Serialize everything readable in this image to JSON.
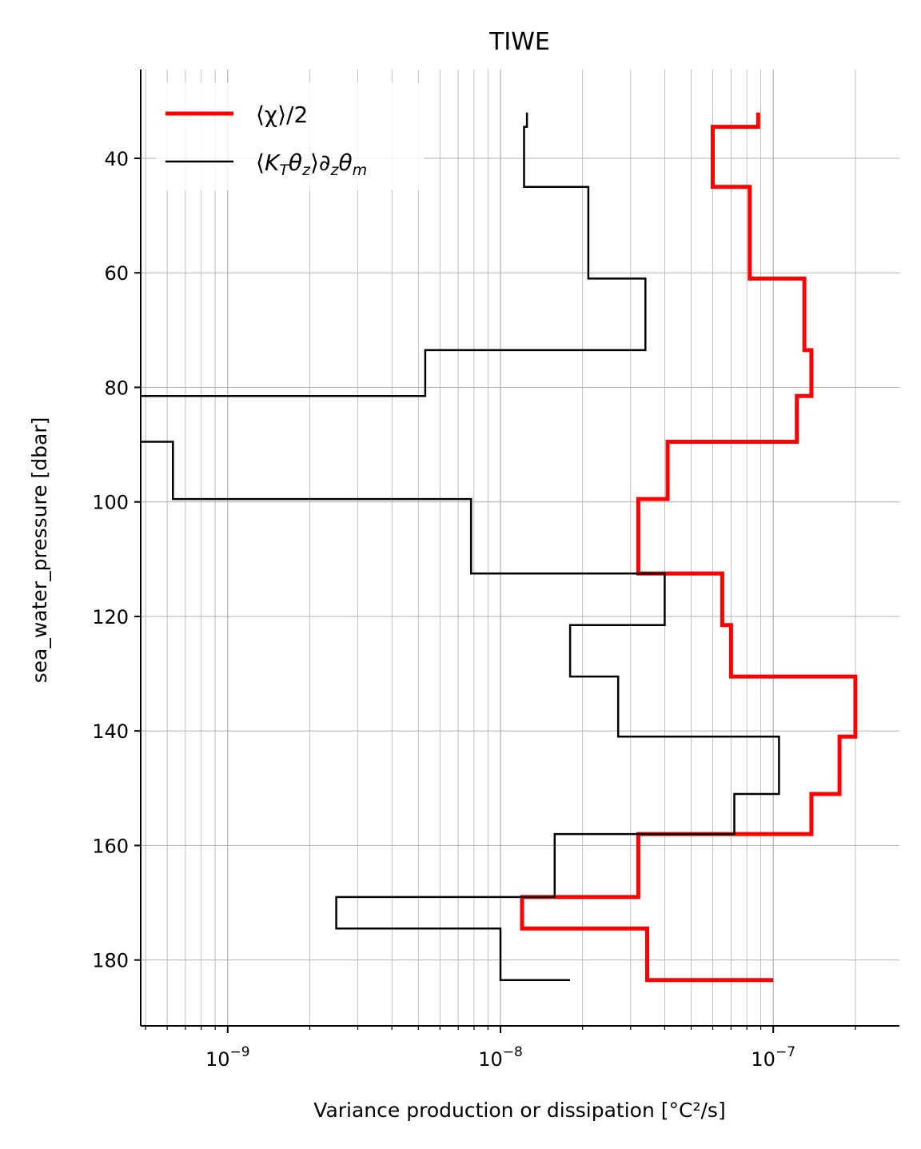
{
  "chart_data": {
    "type": "line",
    "title": "TIWE",
    "xlabel": "Variance production or dissipation [°C²/s]",
    "ylabel": "sea_water_pressure [dbar]",
    "x_scale": "log",
    "xlim": [
      4.8e-10,
      2.9e-07
    ],
    "ylim": [
      191.5,
      24.5
    ],
    "y_inverted": true,
    "x_ticks": [
      {
        "value": 1e-09,
        "label": "10",
        "exp": "−9"
      },
      {
        "value": 1e-08,
        "label": "10",
        "exp": "−8"
      },
      {
        "value": 1e-07,
        "label": "10",
        "exp": "−7"
      }
    ],
    "y_ticks": [
      40,
      60,
      80,
      100,
      120,
      140,
      160,
      180
    ],
    "grid": "major and minor",
    "legend_position": "top-left",
    "series": [
      {
        "name": "⟨χ⟩/2",
        "color": "#ff0000",
        "style": "step",
        "points": [
          [
            8.8e-08,
            32
          ],
          [
            8.8e-08,
            34.5
          ],
          [
            6e-08,
            34.5
          ],
          [
            6e-08,
            45
          ],
          [
            8.2e-08,
            45
          ],
          [
            8.2e-08,
            61
          ],
          [
            1.3e-07,
            61
          ],
          [
            1.3e-07,
            73.5
          ],
          [
            1.38e-07,
            73.5
          ],
          [
            1.38e-07,
            81.5
          ],
          [
            1.22e-07,
            81.5
          ],
          [
            1.22e-07,
            89.5
          ],
          [
            4.1e-08,
            89.5
          ],
          [
            4.1e-08,
            99.5
          ],
          [
            3.2e-08,
            99.5
          ],
          [
            3.2e-08,
            112.5
          ],
          [
            6.5e-08,
            112.5
          ],
          [
            6.5e-08,
            121.5
          ],
          [
            7e-08,
            121.5
          ],
          [
            7e-08,
            130.5
          ],
          [
            2e-07,
            130.5
          ],
          [
            2e-07,
            141
          ],
          [
            1.75e-07,
            141
          ],
          [
            1.75e-07,
            151
          ],
          [
            1.38e-07,
            151
          ],
          [
            1.38e-07,
            158
          ],
          [
            3.2e-08,
            158
          ],
          [
            3.2e-08,
            169
          ],
          [
            1.2e-08,
            169
          ],
          [
            1.2e-08,
            174.5
          ],
          [
            3.45e-08,
            174.5
          ],
          [
            3.45e-08,
            183.5
          ],
          [
            1e-07,
            183.5
          ]
        ]
      },
      {
        "name": "⟨K",
        "name_parts": {
          "k": "K",
          "t": "T",
          "theta": "θ",
          "z": "z",
          "close": "⟩∂",
          "m": "m",
          "open": "⟨"
        },
        "color": "#000000",
        "style": "step",
        "points": [
          [
            1.25e-08,
            32
          ],
          [
            1.25e-08,
            34.5
          ],
          [
            1.22e-08,
            34.5
          ],
          [
            1.22e-08,
            45
          ],
          [
            2.1e-08,
            45
          ],
          [
            2.1e-08,
            61
          ],
          [
            3.4e-08,
            61
          ],
          [
            3.4e-08,
            73.5
          ],
          [
            5.3e-09,
            73.5
          ],
          [
            5.3e-09,
            81.5
          ],
          [
            4.8e-10,
            81.5
          ],
          [
            null,
            null
          ],
          [
            4.8e-10,
            89.5
          ],
          [
            6.3e-10,
            89.5
          ],
          [
            6.3e-10,
            99.5
          ],
          [
            7.8e-09,
            99.5
          ],
          [
            7.8e-09,
            112.5
          ],
          [
            4e-08,
            112.5
          ],
          [
            4e-08,
            121.5
          ],
          [
            1.8e-08,
            121.5
          ],
          [
            1.8e-08,
            130.5
          ],
          [
            2.7e-08,
            130.5
          ],
          [
            2.7e-08,
            141
          ],
          [
            1.05e-07,
            141
          ],
          [
            1.05e-07,
            151
          ],
          [
            7.2e-08,
            151
          ],
          [
            7.2e-08,
            158
          ],
          [
            1.58e-08,
            158
          ],
          [
            1.58e-08,
            169
          ],
          [
            2.5e-09,
            169
          ],
          [
            2.5e-09,
            174.5
          ],
          [
            1e-08,
            174.5
          ],
          [
            1e-08,
            183.5
          ],
          [
            1.8e-08,
            183.5
          ]
        ]
      }
    ]
  }
}
